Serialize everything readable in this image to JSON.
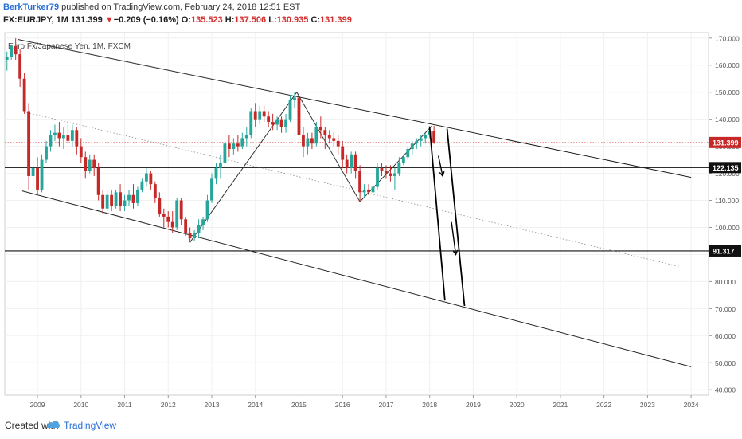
{
  "header": {
    "author": "BerkTurker79",
    "published_text": " published on TradingView.com, February 24, 2018 12:51 EST",
    "symbol": "FX:EURJPY, 1M",
    "last": "131.399",
    "change_arrow": "▼",
    "change": "−0.209 (−0.16%)",
    "open_label": "O:",
    "open": "135.523",
    "high_label": "H:",
    "high": "137.506",
    "low_label": "L:",
    "low": "130.935",
    "close_label": "C:",
    "close": "131.399"
  },
  "footer": {
    "created_with": "Created with",
    "brand": "TradingView"
  },
  "colors": {
    "up": "#26a69a",
    "down": "#c62828",
    "axis": "#555555",
    "grid": "#f0f0f0",
    "line": "#111111",
    "price_line": "#d32f2f"
  },
  "chart_data": {
    "type": "candlestick",
    "title": "Euro Fx/Japanese Yen, 1M, FXCM",
    "x_tick_labels": [
      "2009",
      "2010",
      "2011",
      "2012",
      "2013",
      "2014",
      "2015",
      "2016",
      "2017",
      "2018",
      "2019",
      "2020",
      "2021",
      "2022",
      "2023",
      "2024"
    ],
    "y_tick_labels": [
      "170.000",
      "160.000",
      "150.000",
      "140.000",
      "130.000",
      "120.000",
      "110.000",
      "100.000",
      "90.000",
      "80.000",
      "70.000",
      "60.000",
      "50.000",
      "40.000"
    ],
    "ylim": [
      38,
      172
    ],
    "xlim": [
      2008.25,
      2024.4
    ],
    "price_labels": [
      {
        "value": 131.399,
        "text": "131.399",
        "color": "#c62828"
      },
      {
        "value": 122.135,
        "text": "122.135",
        "color": "#111111"
      },
      {
        "value": 91.317,
        "text": "91.317",
        "color": "#111111"
      }
    ],
    "horizontal_lines": [
      {
        "value": 122.135,
        "style": "solid"
      },
      {
        "value": 91.317,
        "style": "solid"
      },
      {
        "value": 131.399,
        "style": "dotted-red"
      }
    ],
    "trend_lines": [
      {
        "x1": 2008.55,
        "y1": 169.5,
        "x2": 2024.0,
        "y2": 118.5,
        "style": "solid"
      },
      {
        "x1": 2008.65,
        "y1": 113.5,
        "x2": 2024.0,
        "y2": 48.5,
        "style": "solid"
      },
      {
        "x1": 2008.75,
        "y1": 142.5,
        "x2": 2023.75,
        "y2": 85.5,
        "style": "dotted"
      }
    ],
    "zigzag": [
      {
        "x": 2012.5,
        "y": 94.5
      },
      {
        "x": 2014.95,
        "y": 150.0
      },
      {
        "x": 2016.4,
        "y": 109.5
      },
      {
        "x": 2018.05,
        "y": 137.5
      }
    ],
    "projection_lines": [
      {
        "x1": 2018.0,
        "y1": 137.0,
        "x2": 2018.35,
        "y2": 73.0
      },
      {
        "x1": 2018.4,
        "y1": 136.5,
        "x2": 2018.8,
        "y2": 71.0
      }
    ],
    "arrows": [
      {
        "x1": 2018.2,
        "y1": 126.5,
        "x2": 2018.3,
        "y2": 119.0
      },
      {
        "x1": 2018.5,
        "y1": 102.0,
        "x2": 2018.6,
        "y2": 90.0
      }
    ],
    "series": [
      {
        "x": 2008.3,
        "o": 162.0,
        "h": 165.0,
        "l": 158.0,
        "c": 163.0
      },
      {
        "x": 2008.4,
        "o": 163.0,
        "h": 167.5,
        "l": 162.0,
        "c": 167.0
      },
      {
        "x": 2008.5,
        "o": 167.0,
        "h": 169.9,
        "l": 162.0,
        "c": 164.0
      },
      {
        "x": 2008.6,
        "o": 164.0,
        "h": 166.0,
        "l": 152.0,
        "c": 155.0
      },
      {
        "x": 2008.7,
        "o": 155.0,
        "h": 157.0,
        "l": 142.0,
        "c": 143.0
      },
      {
        "x": 2008.8,
        "o": 143.0,
        "h": 146.0,
        "l": 114.0,
        "c": 119.0
      },
      {
        "x": 2008.9,
        "o": 119.0,
        "h": 125.0,
        "l": 115.0,
        "c": 122.0
      },
      {
        "x": 2009.0,
        "o": 122.0,
        "h": 126.0,
        "l": 112.0,
        "c": 114.0
      },
      {
        "x": 2009.1,
        "o": 114.0,
        "h": 127.0,
        "l": 113.0,
        "c": 125.0
      },
      {
        "x": 2009.2,
        "o": 125.0,
        "h": 132.0,
        "l": 124.0,
        "c": 130.0
      },
      {
        "x": 2009.3,
        "o": 130.0,
        "h": 136.0,
        "l": 128.0,
        "c": 134.0
      },
      {
        "x": 2009.4,
        "o": 134.0,
        "h": 138.0,
        "l": 132.0,
        "c": 135.0
      },
      {
        "x": 2009.5,
        "o": 135.0,
        "h": 139.0,
        "l": 130.0,
        "c": 133.0
      },
      {
        "x": 2009.6,
        "o": 133.0,
        "h": 137.0,
        "l": 129.0,
        "c": 134.0
      },
      {
        "x": 2009.7,
        "o": 134.0,
        "h": 138.0,
        "l": 131.0,
        "c": 132.0
      },
      {
        "x": 2009.8,
        "o": 132.0,
        "h": 138.0,
        "l": 130.0,
        "c": 136.0
      },
      {
        "x": 2009.9,
        "o": 136.0,
        "h": 137.0,
        "l": 127.0,
        "c": 130.0
      },
      {
        "x": 2010.0,
        "o": 130.0,
        "h": 133.0,
        "l": 124.0,
        "c": 126.0
      },
      {
        "x": 2010.1,
        "o": 126.0,
        "h": 128.0,
        "l": 118.0,
        "c": 121.0
      },
      {
        "x": 2010.2,
        "o": 121.0,
        "h": 127.0,
        "l": 120.0,
        "c": 125.0
      },
      {
        "x": 2010.3,
        "o": 125.0,
        "h": 127.0,
        "l": 119.0,
        "c": 122.0
      },
      {
        "x": 2010.4,
        "o": 122.0,
        "h": 124.0,
        "l": 110.0,
        "c": 112.0
      },
      {
        "x": 2010.5,
        "o": 112.0,
        "h": 114.0,
        "l": 105.0,
        "c": 107.0
      },
      {
        "x": 2010.6,
        "o": 107.0,
        "h": 114.0,
        "l": 106.0,
        "c": 112.0
      },
      {
        "x": 2010.7,
        "o": 112.0,
        "h": 114.0,
        "l": 106.0,
        "c": 108.0
      },
      {
        "x": 2010.8,
        "o": 108.0,
        "h": 114.0,
        "l": 107.0,
        "c": 113.0
      },
      {
        "x": 2010.9,
        "o": 113.0,
        "h": 116.0,
        "l": 106.0,
        "c": 108.0
      },
      {
        "x": 2011.0,
        "o": 108.0,
        "h": 112.0,
        "l": 106.0,
        "c": 110.0
      },
      {
        "x": 2011.1,
        "o": 110.0,
        "h": 114.0,
        "l": 108.0,
        "c": 112.0
      },
      {
        "x": 2011.2,
        "o": 112.0,
        "h": 116.0,
        "l": 107.0,
        "c": 109.0
      },
      {
        "x": 2011.3,
        "o": 109.0,
        "h": 115.0,
        "l": 108.0,
        "c": 114.0
      },
      {
        "x": 2011.4,
        "o": 114.0,
        "h": 118.0,
        "l": 113.0,
        "c": 117.0
      },
      {
        "x": 2011.5,
        "o": 117.0,
        "h": 122.0,
        "l": 115.0,
        "c": 120.0
      },
      {
        "x": 2011.6,
        "o": 120.0,
        "h": 121.0,
        "l": 114.0,
        "c": 116.0
      },
      {
        "x": 2011.7,
        "o": 116.0,
        "h": 117.0,
        "l": 109.0,
        "c": 111.0
      },
      {
        "x": 2011.8,
        "o": 111.0,
        "h": 113.0,
        "l": 104.0,
        "c": 105.0
      },
      {
        "x": 2011.9,
        "o": 105.0,
        "h": 107.0,
        "l": 100.0,
        "c": 104.0
      },
      {
        "x": 2012.0,
        "o": 104.0,
        "h": 106.0,
        "l": 100.0,
        "c": 102.0
      },
      {
        "x": 2012.1,
        "o": 102.0,
        "h": 106.0,
        "l": 98.0,
        "c": 100.0
      },
      {
        "x": 2012.2,
        "o": 100.0,
        "h": 111.0,
        "l": 99.0,
        "c": 110.0
      },
      {
        "x": 2012.3,
        "o": 110.0,
        "h": 111.0,
        "l": 101.0,
        "c": 103.0
      },
      {
        "x": 2012.4,
        "o": 103.0,
        "h": 104.0,
        "l": 97.0,
        "c": 98.0
      },
      {
        "x": 2012.5,
        "o": 98.0,
        "h": 100.0,
        "l": 94.5,
        "c": 96.0
      },
      {
        "x": 2012.6,
        "o": 96.0,
        "h": 99.0,
        "l": 95.0,
        "c": 98.0
      },
      {
        "x": 2012.7,
        "o": 98.0,
        "h": 103.0,
        "l": 96.0,
        "c": 101.0
      },
      {
        "x": 2012.8,
        "o": 101.0,
        "h": 104.0,
        "l": 99.0,
        "c": 103.0
      },
      {
        "x": 2012.9,
        "o": 103.0,
        "h": 112.0,
        "l": 102.0,
        "c": 110.0
      },
      {
        "x": 2013.0,
        "o": 110.0,
        "h": 120.0,
        "l": 109.0,
        "c": 118.0
      },
      {
        "x": 2013.1,
        "o": 118.0,
        "h": 124.0,
        "l": 116.0,
        "c": 122.0
      },
      {
        "x": 2013.2,
        "o": 122.0,
        "h": 127.0,
        "l": 118.0,
        "c": 124.0
      },
      {
        "x": 2013.3,
        "o": 124.0,
        "h": 132.0,
        "l": 122.0,
        "c": 131.0
      },
      {
        "x": 2013.4,
        "o": 131.0,
        "h": 134.0,
        "l": 126.0,
        "c": 129.0
      },
      {
        "x": 2013.5,
        "o": 129.0,
        "h": 133.0,
        "l": 127.0,
        "c": 131.0
      },
      {
        "x": 2013.6,
        "o": 131.0,
        "h": 134.0,
        "l": 128.0,
        "c": 130.0
      },
      {
        "x": 2013.7,
        "o": 130.0,
        "h": 135.0,
        "l": 129.0,
        "c": 133.0
      },
      {
        "x": 2013.8,
        "o": 133.0,
        "h": 137.0,
        "l": 130.0,
        "c": 134.0
      },
      {
        "x": 2013.9,
        "o": 134.0,
        "h": 144.0,
        "l": 133.0,
        "c": 143.0
      },
      {
        "x": 2014.0,
        "o": 143.0,
        "h": 146.0,
        "l": 137.0,
        "c": 140.0
      },
      {
        "x": 2014.1,
        "o": 140.0,
        "h": 145.0,
        "l": 138.0,
        "c": 143.0
      },
      {
        "x": 2014.2,
        "o": 143.0,
        "h": 145.0,
        "l": 139.0,
        "c": 141.0
      },
      {
        "x": 2014.3,
        "o": 141.0,
        "h": 143.0,
        "l": 137.0,
        "c": 139.0
      },
      {
        "x": 2014.4,
        "o": 139.0,
        "h": 142.0,
        "l": 136.0,
        "c": 138.0
      },
      {
        "x": 2014.5,
        "o": 138.0,
        "h": 141.0,
        "l": 136.0,
        "c": 140.0
      },
      {
        "x": 2014.6,
        "o": 140.0,
        "h": 141.0,
        "l": 135.0,
        "c": 137.0
      },
      {
        "x": 2014.7,
        "o": 137.0,
        "h": 142.0,
        "l": 135.0,
        "c": 140.0
      },
      {
        "x": 2014.8,
        "o": 140.0,
        "h": 149.0,
        "l": 139.0,
        "c": 147.0
      },
      {
        "x": 2014.9,
        "o": 147.0,
        "h": 150.0,
        "l": 144.0,
        "c": 148.0
      },
      {
        "x": 2015.0,
        "o": 148.0,
        "h": 149.0,
        "l": 131.0,
        "c": 134.0
      },
      {
        "x": 2015.1,
        "o": 134.0,
        "h": 137.0,
        "l": 126.0,
        "c": 130.0
      },
      {
        "x": 2015.2,
        "o": 130.0,
        "h": 135.0,
        "l": 127.0,
        "c": 133.0
      },
      {
        "x": 2015.3,
        "o": 133.0,
        "h": 135.0,
        "l": 129.0,
        "c": 131.0
      },
      {
        "x": 2015.4,
        "o": 131.0,
        "h": 139.0,
        "l": 130.0,
        "c": 137.0
      },
      {
        "x": 2015.5,
        "o": 137.0,
        "h": 141.0,
        "l": 133.0,
        "c": 136.0
      },
      {
        "x": 2015.6,
        "o": 136.0,
        "h": 137.0,
        "l": 129.0,
        "c": 134.0
      },
      {
        "x": 2015.7,
        "o": 134.0,
        "h": 136.0,
        "l": 131.0,
        "c": 133.0
      },
      {
        "x": 2015.8,
        "o": 133.0,
        "h": 135.0,
        "l": 130.0,
        "c": 132.0
      },
      {
        "x": 2015.9,
        "o": 132.0,
        "h": 134.0,
        "l": 127.0,
        "c": 130.0
      },
      {
        "x": 2016.0,
        "o": 130.0,
        "h": 132.0,
        "l": 122.0,
        "c": 125.0
      },
      {
        "x": 2016.1,
        "o": 125.0,
        "h": 127.0,
        "l": 120.0,
        "c": 122.0
      },
      {
        "x": 2016.2,
        "o": 122.0,
        "h": 128.0,
        "l": 120.0,
        "c": 127.0
      },
      {
        "x": 2016.3,
        "o": 127.0,
        "h": 128.0,
        "l": 118.0,
        "c": 121.0
      },
      {
        "x": 2016.4,
        "o": 121.0,
        "h": 123.0,
        "l": 109.5,
        "c": 113.0
      },
      {
        "x": 2016.5,
        "o": 113.0,
        "h": 116.0,
        "l": 111.0,
        "c": 114.0
      },
      {
        "x": 2016.6,
        "o": 114.0,
        "h": 116.0,
        "l": 112.0,
        "c": 113.0
      },
      {
        "x": 2016.7,
        "o": 113.0,
        "h": 116.0,
        "l": 111.0,
        "c": 115.0
      },
      {
        "x": 2016.8,
        "o": 115.0,
        "h": 124.0,
        "l": 114.0,
        "c": 122.0
      },
      {
        "x": 2016.9,
        "o": 122.0,
        "h": 124.0,
        "l": 119.0,
        "c": 121.0
      },
      {
        "x": 2017.0,
        "o": 121.0,
        "h": 123.0,
        "l": 118.0,
        "c": 120.0
      },
      {
        "x": 2017.1,
        "o": 120.0,
        "h": 123.0,
        "l": 117.0,
        "c": 119.0
      },
      {
        "x": 2017.2,
        "o": 119.0,
        "h": 122.0,
        "l": 114.0,
        "c": 120.0
      },
      {
        "x": 2017.3,
        "o": 120.0,
        "h": 126.0,
        "l": 119.0,
        "c": 124.0
      },
      {
        "x": 2017.4,
        "o": 124.0,
        "h": 127.0,
        "l": 123.0,
        "c": 126.0
      },
      {
        "x": 2017.5,
        "o": 126.0,
        "h": 130.0,
        "l": 125.0,
        "c": 129.0
      },
      {
        "x": 2017.6,
        "o": 129.0,
        "h": 132.0,
        "l": 127.0,
        "c": 131.0
      },
      {
        "x": 2017.7,
        "o": 131.0,
        "h": 133.0,
        "l": 129.0,
        "c": 132.0
      },
      {
        "x": 2017.8,
        "o": 132.0,
        "h": 134.0,
        "l": 130.0,
        "c": 133.0
      },
      {
        "x": 2017.9,
        "o": 133.0,
        "h": 135.0,
        "l": 131.0,
        "c": 134.0
      },
      {
        "x": 2018.0,
        "o": 134.0,
        "h": 137.5,
        "l": 133.0,
        "c": 135.5
      },
      {
        "x": 2018.1,
        "o": 135.5,
        "h": 137.5,
        "l": 130.9,
        "c": 131.4
      }
    ]
  }
}
